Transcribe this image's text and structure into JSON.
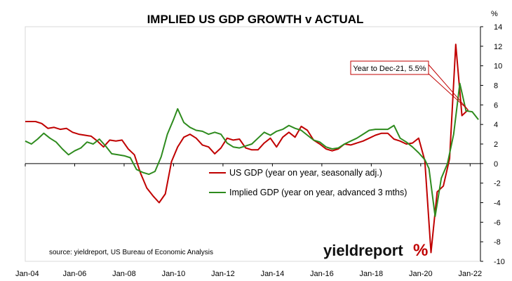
{
  "chart_data": {
    "type": "line",
    "title": "IMPLIED US GDP GROWTH v ACTUAL",
    "y_unit_label": "%",
    "ylim": [
      -10,
      14
    ],
    "y_ticks": [
      -10,
      -8,
      -6,
      -4,
      -2,
      0,
      2,
      4,
      6,
      8,
      10,
      12,
      14
    ],
    "y_axis_position": "right",
    "x_range": [
      "2004-01",
      "2022-06"
    ],
    "x_tick_labels": [
      "Jan-04",
      "Jan-06",
      "Jan-08",
      "Jan-10",
      "Jan-12",
      "Jan-14",
      "Jan-16",
      "Jan-18",
      "Jan-20",
      "Jan-22"
    ],
    "x_tick_dates": [
      "2004-01",
      "2006-01",
      "2008-01",
      "2010-01",
      "2012-01",
      "2014-01",
      "2016-01",
      "2018-01",
      "2020-01",
      "2022-01"
    ],
    "grid": false,
    "legend_position": "center",
    "series": [
      {
        "name": "US GDP (year on year, seasonally adj.)",
        "color": "#c00000",
        "points": [
          [
            "2004-01",
            4.3
          ],
          [
            "2004-06",
            4.3
          ],
          [
            "2004-09",
            4.1
          ],
          [
            "2004-12",
            3.6
          ],
          [
            "2005-03",
            3.7
          ],
          [
            "2005-06",
            3.5
          ],
          [
            "2005-09",
            3.6
          ],
          [
            "2005-12",
            3.2
          ],
          [
            "2006-03",
            3.0
          ],
          [
            "2006-06",
            2.9
          ],
          [
            "2006-09",
            2.8
          ],
          [
            "2006-12",
            2.3
          ],
          [
            "2007-03",
            1.7
          ],
          [
            "2007-06",
            2.4
          ],
          [
            "2007-09",
            2.3
          ],
          [
            "2007-12",
            2.4
          ],
          [
            "2008-03",
            1.5
          ],
          [
            "2008-06",
            0.9
          ],
          [
            "2008-09",
            -1.0
          ],
          [
            "2008-12",
            -2.5
          ],
          [
            "2009-03",
            -3.3
          ],
          [
            "2009-06",
            -4.0
          ],
          [
            "2009-09",
            -3.1
          ],
          [
            "2009-12",
            0.2
          ],
          [
            "2010-03",
            1.7
          ],
          [
            "2010-06",
            2.7
          ],
          [
            "2010-09",
            3.0
          ],
          [
            "2010-12",
            2.6
          ],
          [
            "2011-03",
            1.9
          ],
          [
            "2011-06",
            1.7
          ],
          [
            "2011-09",
            1.0
          ],
          [
            "2011-12",
            1.6
          ],
          [
            "2012-03",
            2.6
          ],
          [
            "2012-06",
            2.4
          ],
          [
            "2012-09",
            2.5
          ],
          [
            "2012-12",
            1.6
          ],
          [
            "2013-03",
            1.4
          ],
          [
            "2013-06",
            1.4
          ],
          [
            "2013-09",
            2.1
          ],
          [
            "2013-12",
            2.6
          ],
          [
            "2014-03",
            1.7
          ],
          [
            "2014-06",
            2.7
          ],
          [
            "2014-09",
            3.2
          ],
          [
            "2014-12",
            2.7
          ],
          [
            "2015-03",
            3.8
          ],
          [
            "2015-06",
            3.4
          ],
          [
            "2015-09",
            2.4
          ],
          [
            "2015-12",
            2.0
          ],
          [
            "2016-03",
            1.5
          ],
          [
            "2016-06",
            1.3
          ],
          [
            "2016-09",
            1.5
          ],
          [
            "2016-12",
            2.0
          ],
          [
            "2017-03",
            1.9
          ],
          [
            "2017-06",
            2.1
          ],
          [
            "2017-09",
            2.3
          ],
          [
            "2017-12",
            2.6
          ],
          [
            "2018-03",
            2.9
          ],
          [
            "2018-06",
            3.1
          ],
          [
            "2018-09",
            3.1
          ],
          [
            "2018-12",
            2.5
          ],
          [
            "2019-03",
            2.3
          ],
          [
            "2019-06",
            2.0
          ],
          [
            "2019-09",
            2.1
          ],
          [
            "2019-12",
            2.6
          ],
          [
            "2020-03",
            0.3
          ],
          [
            "2020-06",
            -9.1
          ],
          [
            "2020-09",
            -2.9
          ],
          [
            "2020-12",
            -2.3
          ],
          [
            "2021-03",
            0.5
          ],
          [
            "2021-06",
            12.2
          ],
          [
            "2021-09",
            4.9
          ],
          [
            "2021-12",
            5.5
          ]
        ]
      },
      {
        "name": "Implied GDP (year on year, advanced 3 mths)",
        "color": "#2e8b1e",
        "points": [
          [
            "2004-01",
            2.3
          ],
          [
            "2004-04",
            2.0
          ],
          [
            "2004-07",
            2.5
          ],
          [
            "2004-10",
            3.1
          ],
          [
            "2005-01",
            2.6
          ],
          [
            "2005-04",
            2.2
          ],
          [
            "2005-07",
            1.5
          ],
          [
            "2005-10",
            0.9
          ],
          [
            "2006-01",
            1.3
          ],
          [
            "2006-04",
            1.6
          ],
          [
            "2006-07",
            2.2
          ],
          [
            "2006-10",
            2.0
          ],
          [
            "2007-01",
            2.5
          ],
          [
            "2007-04",
            1.8
          ],
          [
            "2007-07",
            1.0
          ],
          [
            "2007-10",
            0.9
          ],
          [
            "2008-01",
            0.8
          ],
          [
            "2008-04",
            0.6
          ],
          [
            "2008-07",
            -0.6
          ],
          [
            "2008-10",
            -0.9
          ],
          [
            "2009-01",
            -1.1
          ],
          [
            "2009-04",
            -0.8
          ],
          [
            "2009-07",
            0.7
          ],
          [
            "2009-10",
            3.0
          ],
          [
            "2010-01",
            4.5
          ],
          [
            "2010-03",
            5.6
          ],
          [
            "2010-06",
            4.2
          ],
          [
            "2010-09",
            3.7
          ],
          [
            "2010-12",
            3.4
          ],
          [
            "2011-03",
            3.3
          ],
          [
            "2011-06",
            3.0
          ],
          [
            "2011-09",
            3.2
          ],
          [
            "2011-12",
            3.0
          ],
          [
            "2012-03",
            2.1
          ],
          [
            "2012-06",
            1.7
          ],
          [
            "2012-09",
            1.6
          ],
          [
            "2012-12",
            1.8
          ],
          [
            "2013-03",
            2.0
          ],
          [
            "2013-06",
            2.6
          ],
          [
            "2013-09",
            3.2
          ],
          [
            "2013-12",
            2.9
          ],
          [
            "2014-03",
            3.3
          ],
          [
            "2014-06",
            3.5
          ],
          [
            "2014-09",
            3.9
          ],
          [
            "2014-12",
            3.6
          ],
          [
            "2015-03",
            3.4
          ],
          [
            "2015-06",
            2.9
          ],
          [
            "2015-09",
            2.4
          ],
          [
            "2015-12",
            2.2
          ],
          [
            "2016-03",
            1.7
          ],
          [
            "2016-06",
            1.5
          ],
          [
            "2016-09",
            1.6
          ],
          [
            "2016-12",
            2.0
          ],
          [
            "2017-03",
            2.3
          ],
          [
            "2017-06",
            2.6
          ],
          [
            "2017-09",
            3.0
          ],
          [
            "2017-12",
            3.4
          ],
          [
            "2018-03",
            3.5
          ],
          [
            "2018-06",
            3.5
          ],
          [
            "2018-09",
            3.5
          ],
          [
            "2018-12",
            3.9
          ],
          [
            "2019-03",
            2.6
          ],
          [
            "2019-06",
            2.2
          ],
          [
            "2019-09",
            1.7
          ],
          [
            "2019-12",
            1.1
          ],
          [
            "2020-03",
            0.4
          ],
          [
            "2020-05",
            -0.5
          ],
          [
            "2020-08",
            -5.4
          ],
          [
            "2020-11",
            -1.5
          ],
          [
            "2021-02",
            0.0
          ],
          [
            "2021-05",
            3.0
          ],
          [
            "2021-08",
            8.2
          ],
          [
            "2021-11",
            5.4
          ],
          [
            "2022-02",
            5.3
          ],
          [
            "2022-05",
            4.5
          ]
        ]
      }
    ],
    "annotation": {
      "text": "Year to Dec-21, 5.5%",
      "point": [
        "2021-12",
        5.5
      ]
    },
    "source": "source: yieldreport, US Bureau of Economic Analysis",
    "logo": {
      "text": "yieldreport",
      "symbol": "%"
    }
  }
}
